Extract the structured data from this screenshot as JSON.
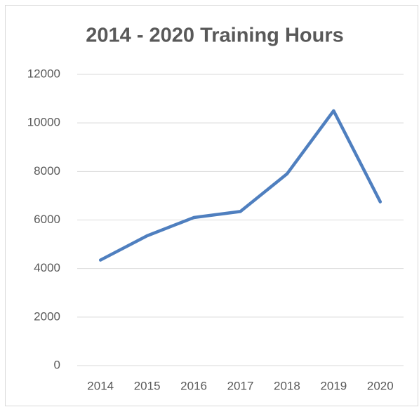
{
  "chart_data": {
    "type": "line",
    "title": "2014 - 2020 Training Hours",
    "categories": [
      "2014",
      "2015",
      "2016",
      "2017",
      "2018",
      "2019",
      "2020"
    ],
    "series": [
      {
        "name": "Training Hours",
        "color": "#4f7fbf",
        "values": [
          4350,
          5350,
          6100,
          6350,
          7900,
          10500,
          6750
        ]
      }
    ],
    "ylim": [
      0,
      12000
    ],
    "yticks": [
      0,
      2000,
      4000,
      6000,
      8000,
      10000,
      12000
    ],
    "grid": true
  }
}
